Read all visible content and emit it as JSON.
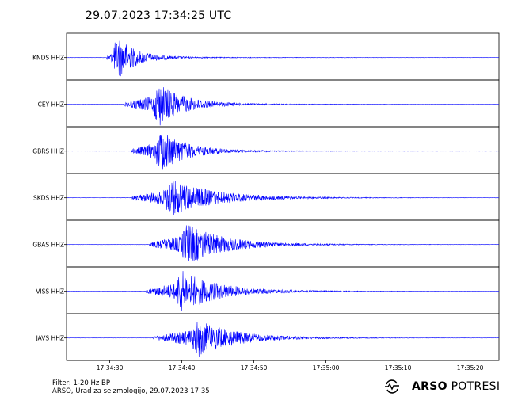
{
  "title": "29.07.2023  17:34:25 UTC",
  "chart_data": {
    "type": "line",
    "title": "29.07.2023  17:34:25 UTC",
    "xlabel": "",
    "ylabel": "",
    "x_ticks": [
      "17:34:30",
      "17:34:40",
      "17:34:50",
      "17:35:00",
      "17:35:10",
      "17:35:20"
    ],
    "x_range": [
      "17:34:24",
      "17:35:24"
    ],
    "series": [
      {
        "name": "KNDS HHZ",
        "p_onset": "17:34:29.5",
        "peak_time": "17:34:31.3",
        "envelope_decay_s": 2.6,
        "peak_relative_amplitude": 0.95
      },
      {
        "name": "CEY HHZ",
        "p_onset": "17:34:32.0",
        "peak_time": "17:34:37.0",
        "envelope_decay_s": 3.5,
        "peak_relative_amplitude": 1.0
      },
      {
        "name": "GBRS HHZ",
        "p_onset": "17:34:33.0",
        "peak_time": "17:34:37.3",
        "envelope_decay_s": 3.5,
        "peak_relative_amplitude": 1.0
      },
      {
        "name": "SKDS HHZ",
        "p_onset": "17:34:33.0",
        "peak_time": "17:34:38.5",
        "envelope_decay_s": 6.0,
        "peak_relative_amplitude": 0.9
      },
      {
        "name": "GBAS HHZ",
        "p_onset": "17:34:35.5",
        "peak_time": "17:34:40.8",
        "envelope_decay_s": 5.0,
        "peak_relative_amplitude": 1.0
      },
      {
        "name": "VISS HHZ",
        "p_onset": "17:34:35.0",
        "peak_time": "17:34:40.0",
        "envelope_decay_s": 5.0,
        "peak_relative_amplitude": 1.0
      },
      {
        "name": "JAVS HHZ",
        "p_onset": "17:34:36.0",
        "peak_time": "17:34:42.3",
        "envelope_decay_s": 5.0,
        "peak_relative_amplitude": 0.9
      }
    ],
    "line_color": "#0000ff",
    "grid": false
  },
  "footer": {
    "filter": "Filter: 1-20 Hz BP",
    "credit": "ARSO, Urad za seizmologijo, 29.07.2023  17:35"
  },
  "logo": {
    "icon": "arso-logo-icon",
    "bold": "ARSO",
    "light": " POTRESI"
  }
}
